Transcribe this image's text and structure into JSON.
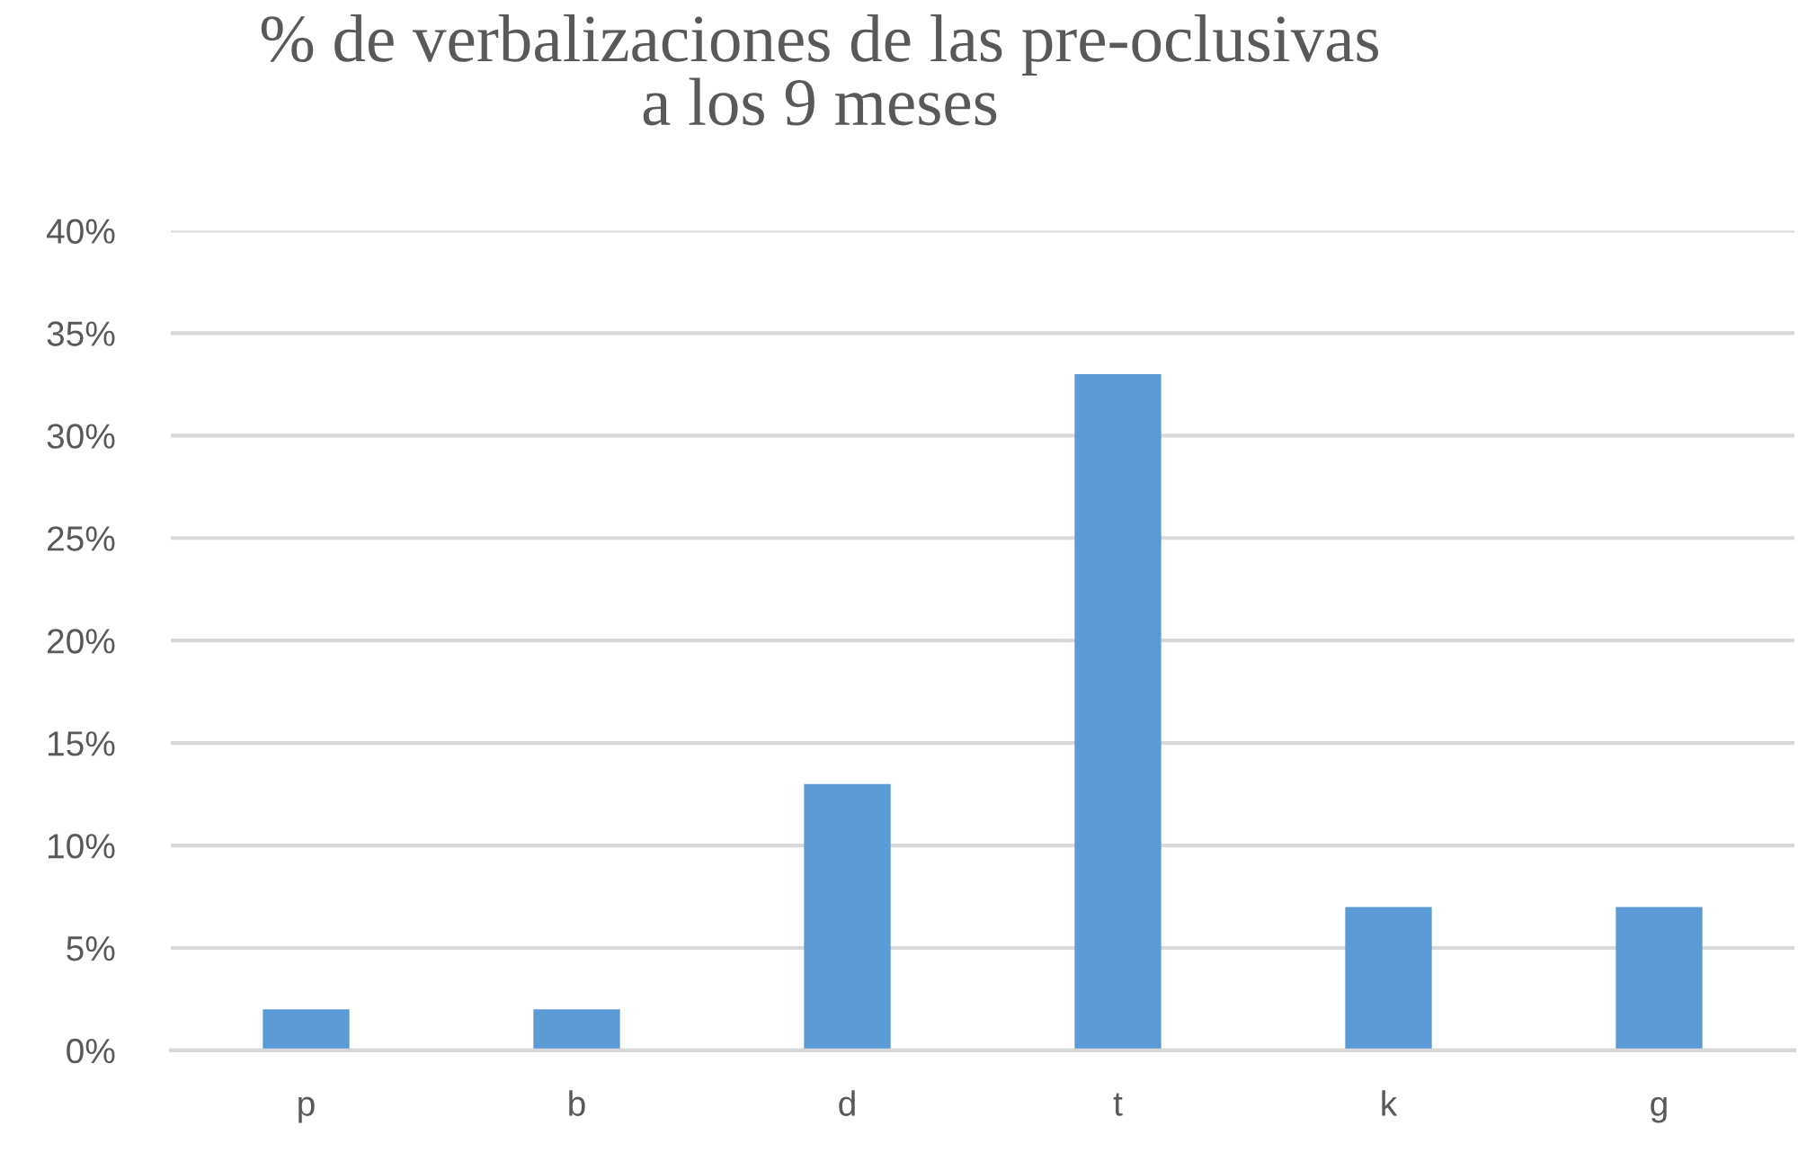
{
  "chart_data": {
    "type": "bar",
    "title": "% de verbalizaciones de las pre-oclusivas\na los 9 meses",
    "categories": [
      "p",
      "b",
      "d",
      "t",
      "k",
      "g"
    ],
    "values": [
      2,
      2,
      13,
      33,
      7,
      7
    ],
    "color": "#5b9bd5",
    "ylim": [
      0,
      40
    ],
    "yticks": [
      {
        "value": 0,
        "label": "0%"
      },
      {
        "value": 5,
        "label": "5%"
      },
      {
        "value": 10,
        "label": "10%"
      },
      {
        "value": 15,
        "label": "15%"
      },
      {
        "value": 20,
        "label": "20%"
      },
      {
        "value": 25,
        "label": "25%"
      },
      {
        "value": 30,
        "label": "30%"
      },
      {
        "value": 35,
        "label": "35%"
      },
      {
        "value": 40,
        "label": "40%"
      }
    ],
    "grid": "y"
  }
}
